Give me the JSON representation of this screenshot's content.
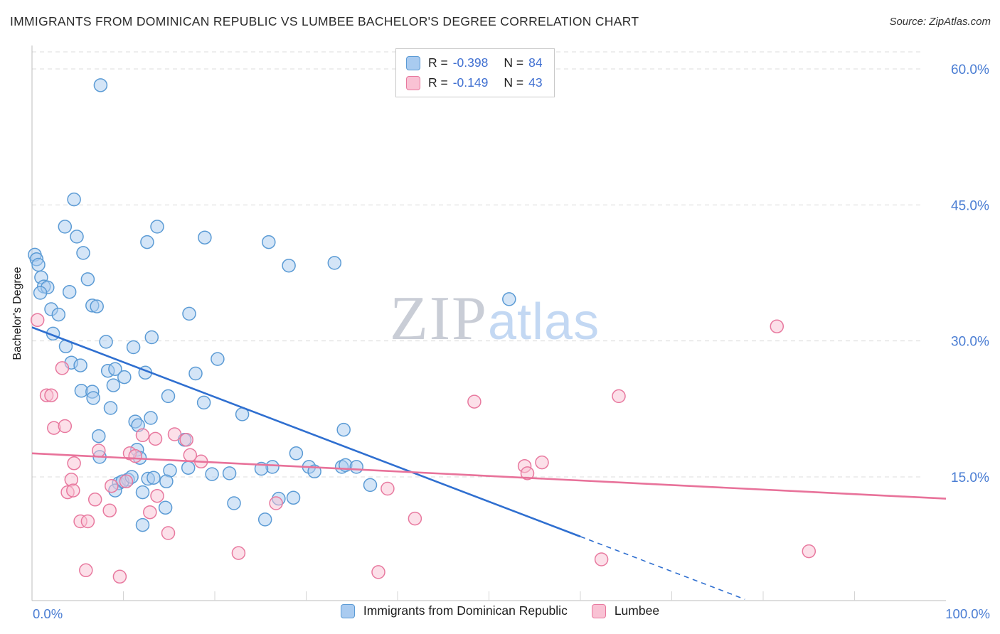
{
  "header": {
    "title": "IMMIGRANTS FROM DOMINICAN REPUBLIC VS LUMBEE BACHELOR'S DEGREE CORRELATION CHART",
    "source": "Source: ZipAtlas.com"
  },
  "watermark": {
    "zip": "ZIP",
    "atlas": "atlas"
  },
  "legend_box": {
    "rows": [
      {
        "r_label": "R =",
        "r_value": "-0.398",
        "n_label": "N =",
        "n_value": "84"
      },
      {
        "r_label": "R =",
        "r_value": "-0.149",
        "n_label": "N =",
        "n_value": "43"
      }
    ]
  },
  "bottom_legend": [
    {
      "label": "Immigrants from Dominican Republic"
    },
    {
      "label": "Lumbee"
    }
  ],
  "chart_data": {
    "type": "scatter",
    "title": "IMMIGRANTS FROM DOMINICAN REPUBLIC VS LUMBEE BACHELOR'S DEGREE CORRELATION CHART",
    "ylabel": "Bachelor's Degree",
    "x_min_label": "0.0%",
    "x_max_label": "100.0%",
    "xlim": [
      0,
      100
    ],
    "ylim": [
      0,
      62
    ],
    "grid": "horizontal-dashed",
    "legend_position": "top-center-and-bottom",
    "axis_label_color": "#4a7dd3",
    "y_ticks": [
      {
        "value": 60,
        "label": "60.0%"
      },
      {
        "value": 45,
        "label": "45.0%"
      },
      {
        "value": 30,
        "label": "30.0%"
      },
      {
        "value": 15,
        "label": "15.0%"
      }
    ],
    "series": [
      {
        "name": "Immigrants from Dominican Republic",
        "R": -0.398,
        "N": 84,
        "fill": "#a9cbf0",
        "stroke": "#5b9bd5",
        "points": [
          [
            7.5,
            58.2
          ],
          [
            4.6,
            45.6
          ],
          [
            3.6,
            42.6
          ],
          [
            13.7,
            42.6
          ],
          [
            4.9,
            41.5
          ],
          [
            18.9,
            41.4
          ],
          [
            12.6,
            40.9
          ],
          [
            25.9,
            40.9
          ],
          [
            0.3,
            39.5
          ],
          [
            0.5,
            39.0
          ],
          [
            0.7,
            38.4
          ],
          [
            5.6,
            39.7
          ],
          [
            28.1,
            38.3
          ],
          [
            33.1,
            38.6
          ],
          [
            1.0,
            37.0
          ],
          [
            6.1,
            36.8
          ],
          [
            1.3,
            36.0
          ],
          [
            1.7,
            35.9
          ],
          [
            0.9,
            35.3
          ],
          [
            4.1,
            35.4
          ],
          [
            2.1,
            33.5
          ],
          [
            6.6,
            33.9
          ],
          [
            7.1,
            33.8
          ],
          [
            17.2,
            33.0
          ],
          [
            52.2,
            34.6
          ],
          [
            2.9,
            32.9
          ],
          [
            2.3,
            30.8
          ],
          [
            8.1,
            29.9
          ],
          [
            13.1,
            30.4
          ],
          [
            3.7,
            29.4
          ],
          [
            11.1,
            29.3
          ],
          [
            4.3,
            27.6
          ],
          [
            5.3,
            27.3
          ],
          [
            20.3,
            28.0
          ],
          [
            8.3,
            26.7
          ],
          [
            9.1,
            26.9
          ],
          [
            12.4,
            26.5
          ],
          [
            10.1,
            26.0
          ],
          [
            17.9,
            26.4
          ],
          [
            5.4,
            24.5
          ],
          [
            6.6,
            24.4
          ],
          [
            8.9,
            25.1
          ],
          [
            6.7,
            23.7
          ],
          [
            14.9,
            23.9
          ],
          [
            18.8,
            23.2
          ],
          [
            8.6,
            22.6
          ],
          [
            13.0,
            21.5
          ],
          [
            23.0,
            21.9
          ],
          [
            11.3,
            21.1
          ],
          [
            11.6,
            20.7
          ],
          [
            34.1,
            20.2
          ],
          [
            7.3,
            19.5
          ],
          [
            16.7,
            19.1
          ],
          [
            11.5,
            18.0
          ],
          [
            7.4,
            17.2
          ],
          [
            11.8,
            17.1
          ],
          [
            28.9,
            17.6
          ],
          [
            26.3,
            16.1
          ],
          [
            15.1,
            15.7
          ],
          [
            17.1,
            16.0
          ],
          [
            21.6,
            15.4
          ],
          [
            25.1,
            15.9
          ],
          [
            30.3,
            16.1
          ],
          [
            33.9,
            16.1
          ],
          [
            34.3,
            16.3
          ],
          [
            35.5,
            16.1
          ],
          [
            9.5,
            14.3
          ],
          [
            10.5,
            14.7
          ],
          [
            9.9,
            14.5
          ],
          [
            12.7,
            14.8
          ],
          [
            14.7,
            14.5
          ],
          [
            19.7,
            15.3
          ],
          [
            37.0,
            14.1
          ],
          [
            9.1,
            13.5
          ],
          [
            12.1,
            13.3
          ],
          [
            27.0,
            12.6
          ],
          [
            28.6,
            12.7
          ],
          [
            14.6,
            11.6
          ],
          [
            25.5,
            10.3
          ],
          [
            12.1,
            9.7
          ],
          [
            22.1,
            12.1
          ],
          [
            30.9,
            15.6
          ],
          [
            10.9,
            15.0
          ],
          [
            13.3,
            14.9
          ]
        ]
      },
      {
        "name": "Lumbee",
        "R": -0.149,
        "N": 43,
        "fill": "#f9c2d4",
        "stroke": "#e8799f",
        "points": [
          [
            0.6,
            32.3
          ],
          [
            81.5,
            31.6
          ],
          [
            3.3,
            27.0
          ],
          [
            1.6,
            24.0
          ],
          [
            2.1,
            24.0
          ],
          [
            48.4,
            23.3
          ],
          [
            64.2,
            23.9
          ],
          [
            2.4,
            20.4
          ],
          [
            3.6,
            20.6
          ],
          [
            12.1,
            19.6
          ],
          [
            13.5,
            19.2
          ],
          [
            15.6,
            19.7
          ],
          [
            16.9,
            19.1
          ],
          [
            7.3,
            17.9
          ],
          [
            10.7,
            17.6
          ],
          [
            11.3,
            17.3
          ],
          [
            4.6,
            16.5
          ],
          [
            18.5,
            16.7
          ],
          [
            17.3,
            17.4
          ],
          [
            55.8,
            16.6
          ],
          [
            53.9,
            16.2
          ],
          [
            54.2,
            15.4
          ],
          [
            4.3,
            14.7
          ],
          [
            8.7,
            14.0
          ],
          [
            10.3,
            14.5
          ],
          [
            38.9,
            13.7
          ],
          [
            3.9,
            13.3
          ],
          [
            4.5,
            13.5
          ],
          [
            6.9,
            12.5
          ],
          [
            26.7,
            12.1
          ],
          [
            8.5,
            11.3
          ],
          [
            12.9,
            11.1
          ],
          [
            41.9,
            10.4
          ],
          [
            5.3,
            10.1
          ],
          [
            6.1,
            10.1
          ],
          [
            14.9,
            8.8
          ],
          [
            22.6,
            6.6
          ],
          [
            85.0,
            6.8
          ],
          [
            62.3,
            5.9
          ],
          [
            5.9,
            4.7
          ],
          [
            37.9,
            4.5
          ],
          [
            13.7,
            12.9
          ],
          [
            9.6,
            4.0
          ]
        ]
      }
    ],
    "trend_lines": [
      {
        "series": "Immigrants from Dominican Republic",
        "color": "#2f6fd0",
        "x_start": 0,
        "y_start": 31.5,
        "solid_until_x": 60,
        "x_end": 78,
        "y_end": 1.5,
        "dashed_tail": true
      },
      {
        "series": "Lumbee",
        "color": "#e8729a",
        "x_start": 0,
        "y_start": 17.6,
        "x_end": 100,
        "y_end": 12.6,
        "dashed_tail": false
      }
    ]
  }
}
